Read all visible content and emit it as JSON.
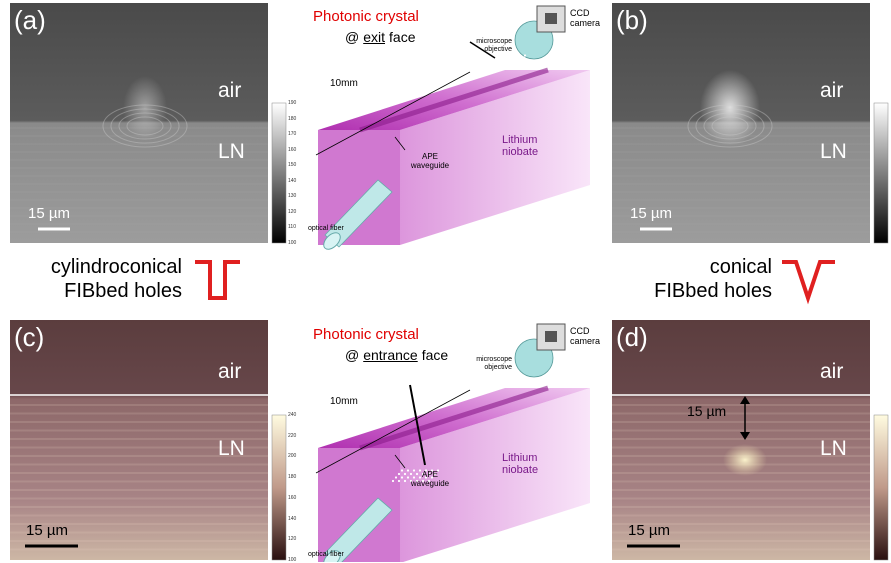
{
  "panels": [
    {
      "label": "(a)",
      "top_region": "air",
      "bottom_region": "LN",
      "scale_bar": "15 µm",
      "colorbar_ticks": [
        190,
        180,
        170,
        160,
        150,
        140,
        130,
        120,
        110,
        100
      ]
    },
    {
      "label": "(b)",
      "top_region": "air",
      "bottom_region": "LN",
      "scale_bar": "15 µm"
    },
    {
      "label": "(c)",
      "top_region": "air",
      "bottom_region": "LN",
      "scale_bar": "15 µm",
      "colorbar_ticks": [
        240,
        220,
        200,
        180,
        160,
        140,
        120,
        100
      ]
    },
    {
      "label": "(d)",
      "top_region": "air",
      "bottom_region": "LN",
      "scale_bar": "15 µm",
      "annotation": "15 µm"
    }
  ],
  "schematics": [
    {
      "title": "Photonic crystal",
      "face_prefix": "@",
      "face": "exit",
      "face_suffix": "face",
      "objective": "microscope objective",
      "camera": "CCD camera",
      "length": "10mm",
      "substrate": "Lithium niobate",
      "waveguide": "APE waveguide",
      "fiber": "optical fiber"
    },
    {
      "title": "Photonic crystal",
      "face_prefix": "@",
      "face": "entrance",
      "face_suffix": "face",
      "objective": "microscope objective",
      "camera": "CCD camera",
      "length": "10mm",
      "substrate": "Lithium niobate",
      "waveguide": "APE waveguide",
      "fiber": "optical fiber"
    }
  ],
  "hole_types": [
    {
      "shape": "cylindroconical",
      "text": "FIBbed holes"
    },
    {
      "shape": "conical",
      "text": "FIBbed holes"
    }
  ]
}
